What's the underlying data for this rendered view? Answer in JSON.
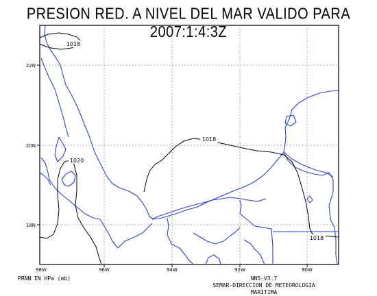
{
  "map": {
    "title": "PRESION RED. A NIVEL DEL MAR VALIDO PARA 2007:1:4:3Z",
    "lat_labels": [
      "22N",
      "20N",
      "18N"
    ],
    "lon_labels": [
      "98W",
      "96W",
      "94W",
      "92W",
      "90W"
    ],
    "isobar_labels": [
      "1018",
      "1020",
      "1018",
      "1018"
    ],
    "colors": {
      "coastline": "#2a3fd8",
      "isobar": "#000000",
      "grid": "#555555",
      "frame": "#000000"
    }
  },
  "footer": {
    "units_label": "PRNN EN HPa (mb)",
    "model_label": "NN5-V3.7",
    "agency_label": "SEMAR-DIRECCION DE METEOROLOGIA MARITIMA"
  }
}
